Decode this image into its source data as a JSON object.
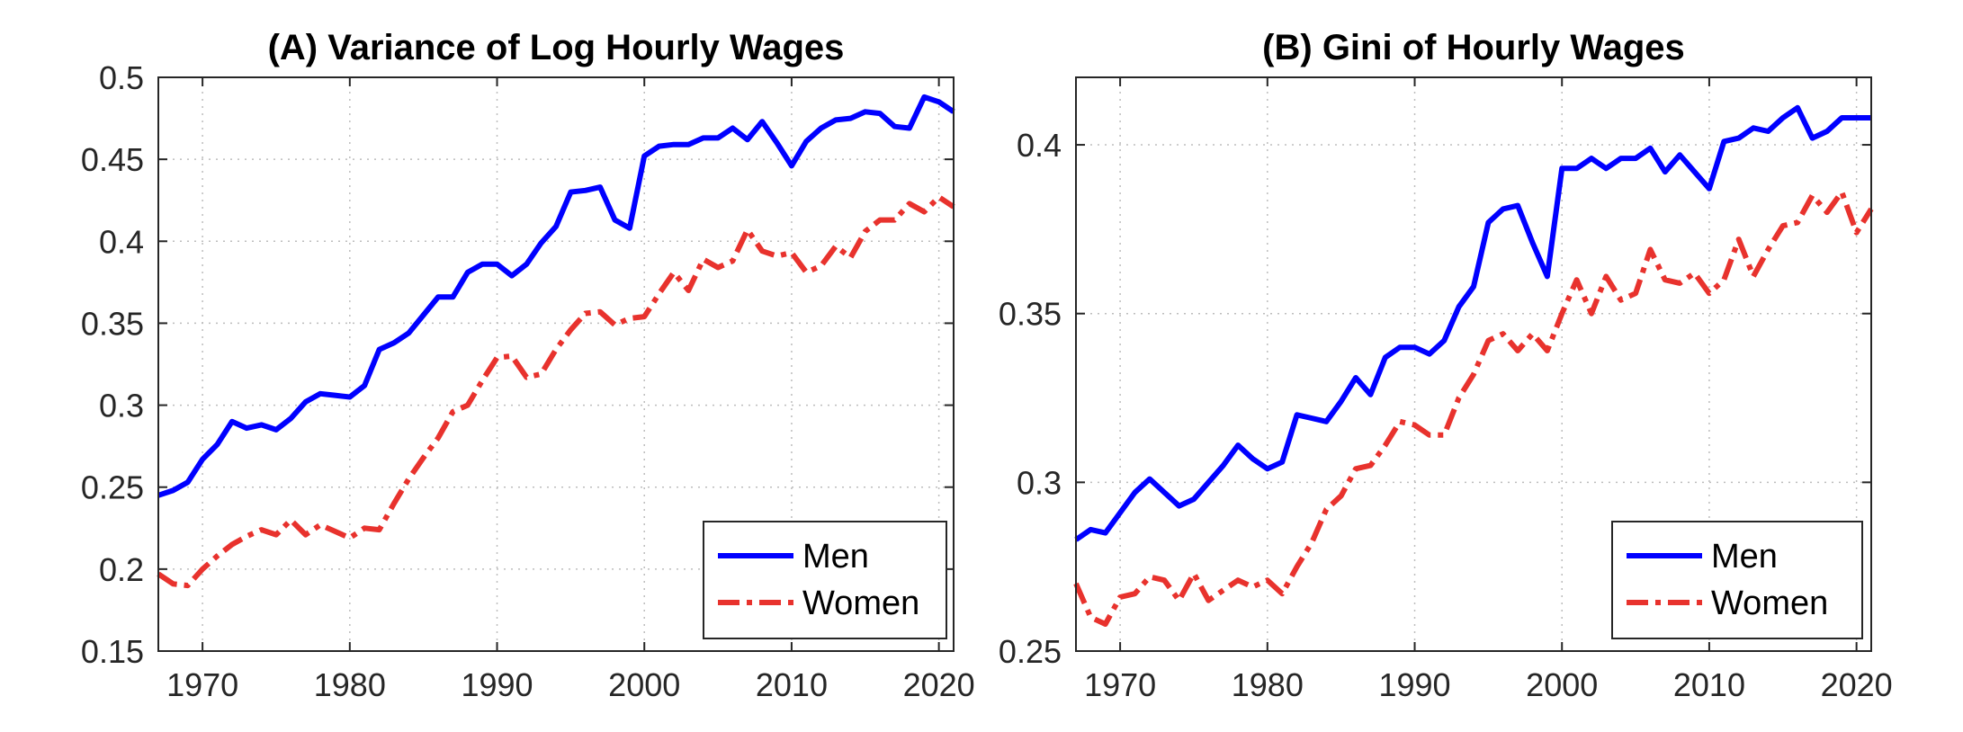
{
  "chart_data": [
    {
      "type": "line",
      "title": "(A) Variance of Log Hourly Wages",
      "xlim": [
        1967,
        2021
      ],
      "ylim": [
        0.15,
        0.5
      ],
      "xticks": [
        1970,
        1980,
        1990,
        2000,
        2010,
        2020
      ],
      "xtick_labels": [
        "1970",
        "1980",
        "1990",
        "2000",
        "2010",
        "2020"
      ],
      "yticks": [
        0.15,
        0.2,
        0.25,
        0.3,
        0.35,
        0.4,
        0.45,
        0.5
      ],
      "ytick_labels": [
        "0.15",
        "0.2",
        "0.25",
        "0.3",
        "0.35",
        "0.4",
        "0.45",
        "0.5"
      ],
      "grid": true,
      "legend": "bottom-right",
      "x": [
        1967,
        1968,
        1969,
        1970,
        1971,
        1972,
        1973,
        1974,
        1975,
        1976,
        1977,
        1978,
        1979,
        1980,
        1981,
        1982,
        1983,
        1984,
        1985,
        1986,
        1987,
        1988,
        1989,
        1990,
        1991,
        1992,
        1993,
        1994,
        1995,
        1996,
        1997,
        1998,
        1999,
        2000,
        2001,
        2002,
        2003,
        2004,
        2005,
        2006,
        2007,
        2008,
        2009,
        2010,
        2011,
        2012,
        2013,
        2014,
        2015,
        2016,
        2017,
        2018,
        2019,
        2020,
        2021
      ],
      "series": [
        {
          "name": "Men",
          "color": "#0000ff",
          "style": "solid",
          "values": [
            0.245,
            0.248,
            0.253,
            0.267,
            0.276,
            0.29,
            0.286,
            0.288,
            0.285,
            0.292,
            0.302,
            0.307,
            0.306,
            0.305,
            0.312,
            0.334,
            0.338,
            0.344,
            0.355,
            0.366,
            0.366,
            0.381,
            0.386,
            0.386,
            0.379,
            0.386,
            0.399,
            0.409,
            0.43,
            0.431,
            0.433,
            0.413,
            0.408,
            0.452,
            0.458,
            0.459,
            0.459,
            0.463,
            0.463,
            0.469,
            0.462,
            0.473,
            0.46,
            0.446,
            0.461,
            0.469,
            0.474,
            0.475,
            0.479,
            0.478,
            0.47,
            0.469,
            0.488,
            0.485,
            0.479
          ]
        },
        {
          "name": "Women",
          "color": "#e8322d",
          "style": "dash-dot",
          "values": [
            0.197,
            0.191,
            0.19,
            0.2,
            0.208,
            0.215,
            0.22,
            0.224,
            0.221,
            0.23,
            0.221,
            0.227,
            0.223,
            0.219,
            0.225,
            0.224,
            0.24,
            0.255,
            0.268,
            0.28,
            0.296,
            0.3,
            0.315,
            0.329,
            0.33,
            0.317,
            0.319,
            0.334,
            0.346,
            0.356,
            0.357,
            0.349,
            0.353,
            0.354,
            0.368,
            0.381,
            0.37,
            0.389,
            0.384,
            0.388,
            0.407,
            0.394,
            0.391,
            0.393,
            0.381,
            0.385,
            0.397,
            0.39,
            0.406,
            0.413,
            0.413,
            0.423,
            0.418,
            0.427,
            0.421
          ]
        }
      ]
    },
    {
      "type": "line",
      "title": "(B) Gini of Hourly Wages",
      "xlim": [
        1967,
        2021
      ],
      "ylim": [
        0.25,
        0.42
      ],
      "xticks": [
        1970,
        1980,
        1990,
        2000,
        2010,
        2020
      ],
      "xtick_labels": [
        "1970",
        "1980",
        "1990",
        "2000",
        "2010",
        "2020"
      ],
      "yticks": [
        0.25,
        0.3,
        0.35,
        0.4
      ],
      "ytick_labels": [
        "0.25",
        "0.3",
        "0.35",
        "0.4"
      ],
      "grid": true,
      "legend": "bottom-right",
      "x": [
        1967,
        1968,
        1969,
        1970,
        1971,
        1972,
        1973,
        1974,
        1975,
        1976,
        1977,
        1978,
        1979,
        1980,
        1981,
        1982,
        1983,
        1984,
        1985,
        1986,
        1987,
        1988,
        1989,
        1990,
        1991,
        1992,
        1993,
        1994,
        1995,
        1996,
        1997,
        1998,
        1999,
        2000,
        2001,
        2002,
        2003,
        2004,
        2005,
        2006,
        2007,
        2008,
        2009,
        2010,
        2011,
        2012,
        2013,
        2014,
        2015,
        2016,
        2017,
        2018,
        2019,
        2020,
        2021
      ],
      "series": [
        {
          "name": "Men",
          "color": "#0000ff",
          "style": "solid",
          "values": [
            0.283,
            0.286,
            0.285,
            0.291,
            0.297,
            0.301,
            0.297,
            0.293,
            0.295,
            0.3,
            0.305,
            0.311,
            0.307,
            0.304,
            0.306,
            0.32,
            0.319,
            0.318,
            0.324,
            0.331,
            0.326,
            0.337,
            0.34,
            0.34,
            0.338,
            0.342,
            0.352,
            0.358,
            0.377,
            0.381,
            0.382,
            0.371,
            0.361,
            0.393,
            0.393,
            0.396,
            0.393,
            0.396,
            0.396,
            0.399,
            0.392,
            0.397,
            0.392,
            0.387,
            0.401,
            0.402,
            0.405,
            0.404,
            0.408,
            0.411,
            0.402,
            0.404,
            0.408,
            0.408,
            0.408
          ]
        },
        {
          "name": "Women",
          "color": "#e8322d",
          "style": "dash-dot",
          "values": [
            0.27,
            0.26,
            0.258,
            0.266,
            0.267,
            0.272,
            0.271,
            0.265,
            0.273,
            0.265,
            0.268,
            0.271,
            0.269,
            0.271,
            0.267,
            0.275,
            0.282,
            0.292,
            0.296,
            0.304,
            0.305,
            0.311,
            0.318,
            0.317,
            0.314,
            0.314,
            0.325,
            0.332,
            0.342,
            0.344,
            0.339,
            0.344,
            0.339,
            0.35,
            0.36,
            0.35,
            0.361,
            0.354,
            0.356,
            0.369,
            0.36,
            0.359,
            0.362,
            0.356,
            0.36,
            0.372,
            0.361,
            0.369,
            0.376,
            0.377,
            0.385,
            0.38,
            0.386,
            0.374,
            0.381
          ]
        }
      ]
    }
  ]
}
